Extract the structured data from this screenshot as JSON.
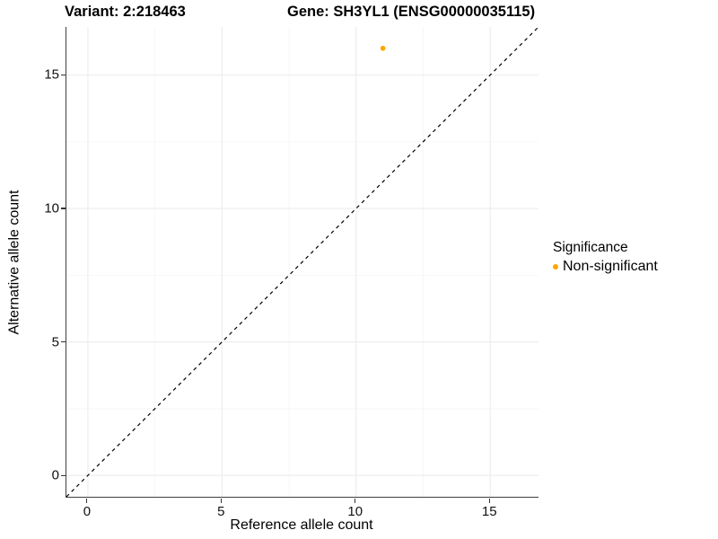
{
  "header": {
    "variant_title": "Variant: 2:218463",
    "gene_title": "Gene: SH3YL1 (ENSG00000035115)"
  },
  "chart_data": {
    "type": "scatter",
    "xlabel": "Reference allele count",
    "ylabel": "Alternative allele count",
    "xlim": [
      -0.8,
      16.8
    ],
    "ylim": [
      -0.8,
      16.8
    ],
    "x_ticks": [
      0,
      5,
      10,
      15
    ],
    "y_ticks": [
      0,
      5,
      10,
      15
    ],
    "x_minor_ticks": [
      2.5,
      7.5,
      12.5
    ],
    "y_minor_ticks": [
      2.5,
      7.5,
      12.5
    ],
    "grid": true,
    "identity_line": {
      "type": "dashed",
      "slope": 1,
      "intercept": 0
    },
    "points": [
      {
        "x": 11,
        "y": 16,
        "series": "Non-significant"
      }
    ],
    "legend": {
      "position": "right",
      "title": "Significance",
      "items": [
        {
          "label": "Non-significant",
          "color": "#FFA500"
        }
      ]
    }
  },
  "colors": {
    "point": "#FFA500",
    "axis_line": "#404040",
    "tick_mark": "#333333",
    "grid_major": "#ececec",
    "grid_minor": "#f5f5f5",
    "identity_line": "#000000",
    "text": "#000000"
  }
}
